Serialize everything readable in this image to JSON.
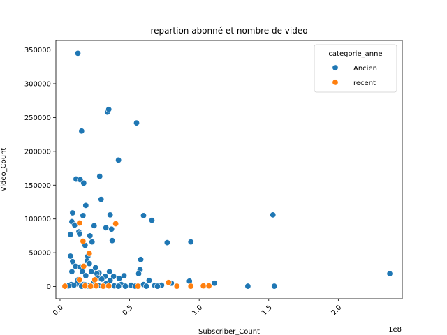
{
  "chart_data": {
    "type": "scatter",
    "title": "repartion abonné et nombre de video",
    "xlabel": "Subscriber_Count",
    "ylabel": "Video_Count",
    "x_offset_label": "1e8",
    "x_scale": 100000000,
    "xlim": [
      -3000000,
      246000000
    ],
    "ylim": [
      -18000,
      364000
    ],
    "xticks": [
      0,
      50000000,
      100000000,
      150000000,
      200000000
    ],
    "xtick_labels": [
      "0.0",
      "0.5",
      "1.0",
      "1.5",
      "2.0"
    ],
    "yticks": [
      0,
      50000,
      100000,
      150000,
      200000,
      250000,
      300000,
      350000
    ],
    "ytick_labels": [
      "0",
      "50000",
      "100000",
      "150000",
      "200000",
      "250000",
      "300000",
      "350000"
    ],
    "grid": false,
    "legend": {
      "title": "categorie_anne",
      "placement": "top-right",
      "entries": [
        "Ancien",
        "recent"
      ]
    },
    "colors": {
      "Ancien": "#1f77b4",
      "recent": "#ff7f0e"
    },
    "series": [
      {
        "name": "Ancien",
        "points": [
          [
            12800000,
            345000
          ],
          [
            34000000,
            258000
          ],
          [
            35000000,
            262000
          ],
          [
            55000000,
            242000
          ],
          [
            15500000,
            230000
          ],
          [
            42000000,
            187000
          ],
          [
            28500000,
            163000
          ],
          [
            11500000,
            159000
          ],
          [
            14500000,
            158000
          ],
          [
            17000000,
            153000
          ],
          [
            29500000,
            129000
          ],
          [
            18500000,
            120000
          ],
          [
            9000000,
            109000
          ],
          [
            16500000,
            105000
          ],
          [
            36000000,
            106000
          ],
          [
            60000000,
            105000
          ],
          [
            153000000,
            106000
          ],
          [
            8500000,
            96000
          ],
          [
            66000000,
            98000
          ],
          [
            10500000,
            91000
          ],
          [
            24500000,
            90000
          ],
          [
            33000000,
            87000
          ],
          [
            37000000,
            85000
          ],
          [
            13500000,
            81000
          ],
          [
            14000000,
            78000
          ],
          [
            7500000,
            77000
          ],
          [
            21500000,
            75000
          ],
          [
            37500000,
            68000
          ],
          [
            23000000,
            66000
          ],
          [
            77000000,
            65000
          ],
          [
            94000000,
            66000
          ],
          [
            18000000,
            61000
          ],
          [
            20500000,
            48000
          ],
          [
            20000000,
            45000
          ],
          [
            7500000,
            45000
          ],
          [
            58000000,
            40000
          ],
          [
            9000000,
            37000
          ],
          [
            19500000,
            38000
          ],
          [
            21000000,
            34000
          ],
          [
            11000000,
            30000
          ],
          [
            14500000,
            29000
          ],
          [
            25500000,
            28000
          ],
          [
            57500000,
            25000
          ],
          [
            8500000,
            22000
          ],
          [
            16000000,
            22000
          ],
          [
            22500000,
            22000
          ],
          [
            35500000,
            22000
          ],
          [
            28000000,
            20000
          ],
          [
            26500000,
            19000
          ],
          [
            56500000,
            19000
          ],
          [
            237000000,
            19000
          ],
          [
            18500000,
            16000
          ],
          [
            32500000,
            15000
          ],
          [
            38500000,
            15000
          ],
          [
            46000000,
            16000
          ],
          [
            27000000,
            13000
          ],
          [
            42500000,
            12000
          ],
          [
            13000000,
            10000
          ],
          [
            30000000,
            11000
          ],
          [
            36000000,
            9000
          ],
          [
            64000000,
            9000
          ],
          [
            80000000,
            5000
          ],
          [
            93000000,
            8000
          ],
          [
            111000000,
            5000
          ],
          [
            12000000,
            4000
          ],
          [
            8000000,
            3000
          ],
          [
            17000000,
            3000
          ],
          [
            24000000,
            5000
          ],
          [
            33000000,
            4000
          ],
          [
            44000000,
            3000
          ],
          [
            51000000,
            2000
          ],
          [
            60000000,
            3000
          ],
          [
            68000000,
            1500
          ],
          [
            73000000,
            2000
          ],
          [
            10000000,
            2000
          ],
          [
            20000000,
            1000
          ],
          [
            27500000,
            1500
          ],
          [
            39000000,
            1000
          ],
          [
            47000000,
            500
          ],
          [
            6000000,
            1000
          ],
          [
            15500000,
            500
          ],
          [
            22500000,
            500
          ],
          [
            31000000,
            1000
          ],
          [
            54000000,
            500
          ],
          [
            62000000,
            500
          ],
          [
            70000000,
            500
          ],
          [
            135000000,
            500
          ],
          [
            154000000,
            500
          ],
          [
            42000000,
            500
          ],
          [
            18000000,
            2500
          ]
        ]
      },
      {
        "name": "recent",
        "points": [
          [
            3500000,
            500
          ],
          [
            14000000,
            94000
          ],
          [
            40000000,
            93000
          ],
          [
            16500000,
            67000
          ],
          [
            21000000,
            49000
          ],
          [
            17000000,
            30000
          ],
          [
            14000000,
            10000
          ],
          [
            25000000,
            10000
          ],
          [
            78000000,
            6000
          ],
          [
            18000000,
            1000
          ],
          [
            22000000,
            500
          ],
          [
            26000000,
            1000
          ],
          [
            31000000,
            500
          ],
          [
            35000000,
            1000
          ],
          [
            56000000,
            500
          ],
          [
            84000000,
            500
          ],
          [
            94000000,
            500
          ],
          [
            103000000,
            1000
          ],
          [
            107000000,
            1000
          ]
        ]
      }
    ]
  }
}
